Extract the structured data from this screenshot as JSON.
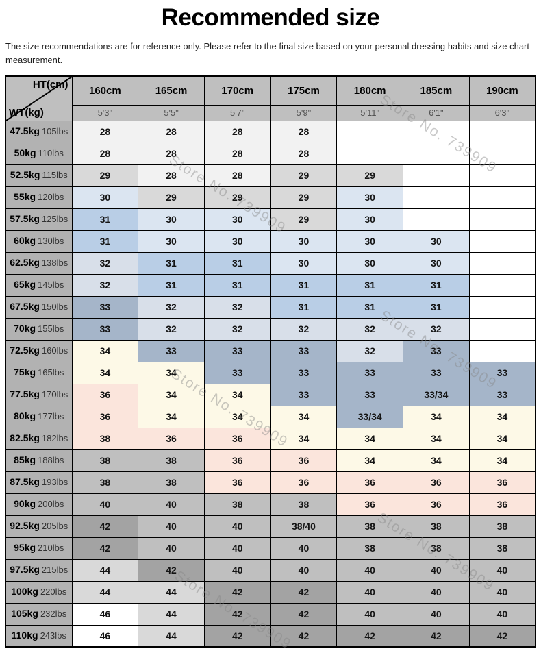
{
  "page": {
    "title": "Recommended size",
    "disclaimer": "The size recommendations are for reference only. Please refer to the final size based on your personal dressing habits and size chart measurement."
  },
  "watermark": {
    "text": "Store No. 739909"
  },
  "palette": {
    "W": "#ffffff",
    "F2": "#f2f2f2",
    "D9": "#d9d9d9",
    "BF": "#bfbfbf",
    "A6": "#a3a3a3",
    "LB": "#dbe5f1",
    "MB": "#b9cee6",
    "PB": "#d8dfe9",
    "GB": "#a5b5c9",
    "CR": "#fdf9e7",
    "PK": "#fbe5dc",
    "header_bg": "#bfbfbf",
    "weight_col_bg": "#b2b2b2",
    "border": "#000000",
    "feet_text": "#545454"
  },
  "chart_data": {
    "type": "table",
    "title": "Recommended size",
    "corner": {
      "ht_label": "HT(cm)",
      "wt_label": "WT(kg)"
    },
    "height_columns": [
      {
        "cm": "160cm",
        "ft": "5'3\""
      },
      {
        "cm": "165cm",
        "ft": "5'5\""
      },
      {
        "cm": "170cm",
        "ft": "5'7\""
      },
      {
        "cm": "175cm",
        "ft": "5'9\""
      },
      {
        "cm": "180cm",
        "ft": "5'11\""
      },
      {
        "cm": "185cm",
        "ft": "6'1\""
      },
      {
        "cm": "190cm",
        "ft": "6'3\""
      }
    ],
    "rows": [
      {
        "kg": "47.5kg",
        "lbs": "105lbs",
        "sizes": [
          "28",
          "28",
          "28",
          "28",
          "",
          "",
          ""
        ],
        "colors": [
          "F2",
          "F2",
          "F2",
          "F2",
          "W",
          "W",
          "W"
        ]
      },
      {
        "kg": "50kg",
        "lbs": "110lbs",
        "sizes": [
          "28",
          "28",
          "28",
          "28",
          "",
          "",
          ""
        ],
        "colors": [
          "F2",
          "F2",
          "F2",
          "F2",
          "W",
          "W",
          "W"
        ]
      },
      {
        "kg": "52.5kg",
        "lbs": "115lbs",
        "sizes": [
          "29",
          "28",
          "28",
          "29",
          "29",
          "",
          ""
        ],
        "colors": [
          "D9",
          "F2",
          "F2",
          "D9",
          "D9",
          "W",
          "W"
        ]
      },
      {
        "kg": "55kg",
        "lbs": "120lbs",
        "sizes": [
          "30",
          "29",
          "29",
          "29",
          "30",
          "",
          ""
        ],
        "colors": [
          "LB",
          "D9",
          "D9",
          "D9",
          "LB",
          "W",
          "W"
        ]
      },
      {
        "kg": "57.5kg",
        "lbs": "125lbs",
        "sizes": [
          "31",
          "30",
          "30",
          "29",
          "30",
          "",
          ""
        ],
        "colors": [
          "MB",
          "LB",
          "LB",
          "D9",
          "LB",
          "W",
          "W"
        ]
      },
      {
        "kg": "60kg",
        "lbs": "130lbs",
        "sizes": [
          "31",
          "30",
          "30",
          "30",
          "30",
          "30",
          ""
        ],
        "colors": [
          "MB",
          "LB",
          "LB",
          "LB",
          "LB",
          "LB",
          "W"
        ]
      },
      {
        "kg": "62.5kg",
        "lbs": "138lbs",
        "sizes": [
          "32",
          "31",
          "31",
          "30",
          "30",
          "30",
          ""
        ],
        "colors": [
          "PB",
          "MB",
          "MB",
          "LB",
          "LB",
          "LB",
          "W"
        ]
      },
      {
        "kg": "65kg",
        "lbs": "145lbs",
        "sizes": [
          "32",
          "31",
          "31",
          "31",
          "31",
          "31",
          ""
        ],
        "colors": [
          "PB",
          "MB",
          "MB",
          "MB",
          "MB",
          "MB",
          "W"
        ]
      },
      {
        "kg": "67.5kg",
        "lbs": "150lbs",
        "sizes": [
          "33",
          "32",
          "32",
          "31",
          "31",
          "31",
          ""
        ],
        "colors": [
          "GB",
          "PB",
          "PB",
          "MB",
          "MB",
          "MB",
          "W"
        ]
      },
      {
        "kg": "70kg",
        "lbs": "155lbs",
        "sizes": [
          "33",
          "32",
          "32",
          "32",
          "32",
          "32",
          ""
        ],
        "colors": [
          "GB",
          "PB",
          "PB",
          "PB",
          "PB",
          "PB",
          "W"
        ]
      },
      {
        "kg": "72.5kg",
        "lbs": "160lbs",
        "sizes": [
          "34",
          "33",
          "33",
          "33",
          "32",
          "33",
          ""
        ],
        "colors": [
          "CR",
          "GB",
          "GB",
          "GB",
          "PB",
          "GB",
          "W"
        ]
      },
      {
        "kg": "75kg",
        "lbs": "165lbs",
        "sizes": [
          "34",
          "34",
          "33",
          "33",
          "33",
          "33",
          "33"
        ],
        "colors": [
          "CR",
          "CR",
          "GB",
          "GB",
          "GB",
          "GB",
          "GB"
        ]
      },
      {
        "kg": "77.5kg",
        "lbs": "170lbs",
        "sizes": [
          "36",
          "34",
          "34",
          "33",
          "33",
          "33/34",
          "33"
        ],
        "colors": [
          "PK",
          "CR",
          "CR",
          "GB",
          "GB",
          "GB",
          "GB"
        ]
      },
      {
        "kg": "80kg",
        "lbs": "177lbs",
        "sizes": [
          "36",
          "34",
          "34",
          "34",
          "33/34",
          "34",
          "34"
        ],
        "colors": [
          "PK",
          "CR",
          "CR",
          "CR",
          "GB",
          "CR",
          "CR"
        ]
      },
      {
        "kg": "82.5kg",
        "lbs": "182lbs",
        "sizes": [
          "38",
          "36",
          "36",
          "34",
          "34",
          "34",
          "34"
        ],
        "colors": [
          "PK",
          "PK",
          "PK",
          "CR",
          "CR",
          "CR",
          "CR"
        ]
      },
      {
        "kg": "85kg",
        "lbs": "188lbs",
        "sizes": [
          "38",
          "38",
          "36",
          "36",
          "34",
          "34",
          "34"
        ],
        "colors": [
          "BF",
          "BF",
          "PK",
          "PK",
          "CR",
          "CR",
          "CR"
        ]
      },
      {
        "kg": "87.5kg",
        "lbs": "193lbs",
        "sizes": [
          "38",
          "38",
          "36",
          "36",
          "36",
          "36",
          "36"
        ],
        "colors": [
          "BF",
          "BF",
          "PK",
          "PK",
          "PK",
          "PK",
          "PK"
        ]
      },
      {
        "kg": "90kg",
        "lbs": "200lbs",
        "sizes": [
          "40",
          "40",
          "38",
          "38",
          "36",
          "36",
          "36"
        ],
        "colors": [
          "BF",
          "BF",
          "BF",
          "BF",
          "PK",
          "PK",
          "PK"
        ]
      },
      {
        "kg": "92.5kg",
        "lbs": "205lbs",
        "sizes": [
          "42",
          "40",
          "40",
          "38/40",
          "38",
          "38",
          "38"
        ],
        "colors": [
          "A6",
          "BF",
          "BF",
          "BF",
          "BF",
          "BF",
          "BF"
        ]
      },
      {
        "kg": "95kg",
        "lbs": "210lbs",
        "sizes": [
          "42",
          "40",
          "40",
          "40",
          "38",
          "38",
          "38"
        ],
        "colors": [
          "A6",
          "BF",
          "BF",
          "BF",
          "BF",
          "BF",
          "BF"
        ]
      },
      {
        "kg": "97.5kg",
        "lbs": "215lbs",
        "sizes": [
          "44",
          "42",
          "40",
          "40",
          "40",
          "40",
          "40"
        ],
        "colors": [
          "D9",
          "A6",
          "BF",
          "BF",
          "BF",
          "BF",
          "BF"
        ]
      },
      {
        "kg": "100kg",
        "lbs": "220lbs",
        "sizes": [
          "44",
          "44",
          "42",
          "42",
          "40",
          "40",
          "40"
        ],
        "colors": [
          "D9",
          "D9",
          "A6",
          "A6",
          "BF",
          "BF",
          "BF"
        ]
      },
      {
        "kg": "105kg",
        "lbs": "232lbs",
        "sizes": [
          "46",
          "44",
          "42",
          "42",
          "40",
          "40",
          "40"
        ],
        "colors": [
          "W",
          "D9",
          "A6",
          "A6",
          "BF",
          "BF",
          "BF"
        ]
      },
      {
        "kg": "110kg",
        "lbs": "243lbs",
        "sizes": [
          "46",
          "44",
          "42",
          "42",
          "42",
          "42",
          "42"
        ],
        "colors": [
          "W",
          "D9",
          "A6",
          "A6",
          "A6",
          "A6",
          "A6"
        ]
      }
    ]
  }
}
